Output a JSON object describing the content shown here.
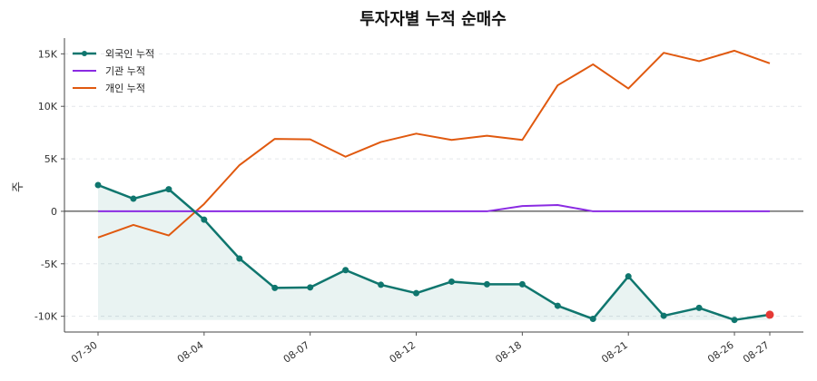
{
  "chart_data": {
    "type": "line",
    "title": "투자자별 누적 순매수",
    "ylabel": "주",
    "xlabel": "",
    "ylim": [
      -11500,
      16500
    ],
    "yticks": [
      -10000,
      -5000,
      0,
      5000,
      10000,
      15000
    ],
    "ytick_labels": [
      "-10K",
      "-5K",
      "0",
      "5K",
      "10K",
      "15K"
    ],
    "x": [
      "07-30",
      "07-31",
      "08-01",
      "08-04",
      "08-05",
      "08-06",
      "08-07",
      "08-08",
      "08-11",
      "08-12",
      "08-13",
      "08-14",
      "08-18",
      "08-19",
      "08-20",
      "08-21",
      "08-22",
      "08-25",
      "08-26",
      "08-27"
    ],
    "xtick_labels": [
      "07-30",
      "08-04",
      "08-07",
      "08-12",
      "08-18",
      "08-21",
      "08-26",
      "08-27"
    ],
    "legend_position": "top-left",
    "grid": "horizontal-dashed",
    "series": [
      {
        "name": "외국인 누적",
        "color": "#0f766e",
        "markers": true,
        "fill": true,
        "last_point_color": "#e53935",
        "values": [
          2500,
          1200,
          2100,
          -800,
          -4500,
          -7300,
          -7250,
          -5600,
          -7000,
          -7800,
          -6700,
          -6950,
          -6950,
          -9000,
          -10250,
          -6200,
          -9950,
          -9200,
          -10350,
          -9850
        ]
      },
      {
        "name": "기관 누적",
        "color": "#8a2be2",
        "markers": false,
        "fill": false,
        "values": [
          0,
          0,
          0,
          0,
          0,
          0,
          0,
          0,
          0,
          0,
          0,
          0,
          500,
          600,
          0,
          0,
          0,
          0,
          0,
          0
        ]
      },
      {
        "name": "개인 누적",
        "color": "#e0590f",
        "markers": false,
        "fill": false,
        "values": [
          -2500,
          -1300,
          -2300,
          700,
          4400,
          6900,
          6850,
          5200,
          6600,
          7400,
          6800,
          7200,
          6800,
          12000,
          14000,
          11700,
          15100,
          14300,
          15300,
          14100
        ]
      }
    ]
  }
}
